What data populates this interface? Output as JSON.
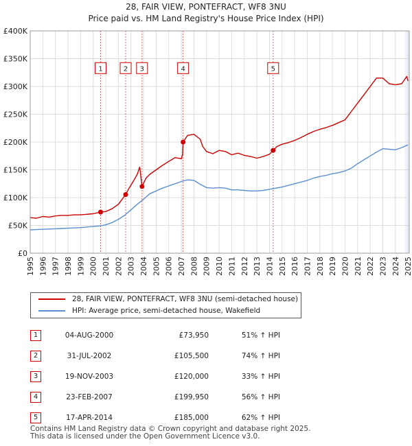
{
  "title_line1": "28, FAIR VIEW, PONTEFRACT, WF8 3NU",
  "title_line2": "Price paid vs. HM Land Registry's House Price Index (HPI)",
  "colors": {
    "property": "#cc0000",
    "hpi": "#5a8fd0",
    "grid": "#dddddd",
    "shade": "#eef3fb",
    "vline": "#e06666",
    "marker_border": "#cc0000"
  },
  "chart_data": {
    "type": "line",
    "title": "28, FAIR VIEW, PONTEFRACT, WF8 3NU",
    "subtitle": "Price paid vs. HM Land Registry's House Price Index (HPI)",
    "xlabel": "",
    "ylabel": "",
    "xlim": [
      1995,
      2025.1
    ],
    "ylim": [
      0,
      400000
    ],
    "y_ticks": [
      {
        "value": 0,
        "label": "£0"
      },
      {
        "value": 50000,
        "label": "£50K"
      },
      {
        "value": 100000,
        "label": "£100K"
      },
      {
        "value": 150000,
        "label": "£150K"
      },
      {
        "value": 200000,
        "label": "£200K"
      },
      {
        "value": 250000,
        "label": "£250K"
      },
      {
        "value": 300000,
        "label": "£300K"
      },
      {
        "value": 350000,
        "label": "£350K"
      },
      {
        "value": 400000,
        "label": "£400K"
      }
    ],
    "x_ticks": [
      "1995",
      "1996",
      "1997",
      "1998",
      "1999",
      "2000",
      "2001",
      "2002",
      "2003",
      "2004",
      "2005",
      "2006",
      "2007",
      "2008",
      "2009",
      "2010",
      "2011",
      "2012",
      "2013",
      "2014",
      "2015",
      "2016",
      "2017",
      "2018",
      "2019",
      "2020",
      "2021",
      "2022",
      "2023",
      "2024",
      "2025"
    ],
    "grid": true,
    "legend_position": "below chart",
    "shaded_region": [
      2024.75,
      2025.1
    ],
    "series": [
      {
        "name": "28, FAIR VIEW, PONTEFRACT, WF8 3NU (semi-detached house)",
        "color": "#cc0000",
        "x": [
          1995.0,
          1995.5,
          1996.0,
          1996.5,
          1997.0,
          1997.5,
          1998.0,
          1998.5,
          1999.0,
          1999.5,
          2000.0,
          2000.59,
          2001.0,
          2001.5,
          2002.0,
          2002.58,
          2002.8,
          2003.2,
          2003.5,
          2003.7,
          2003.88,
          2004.2,
          2004.5,
          2005.0,
          2005.5,
          2006.0,
          2006.5,
          2007.0,
          2007.1,
          2007.14,
          2007.5,
          2008.0,
          2008.5,
          2008.7,
          2009.0,
          2009.5,
          2010.0,
          2010.5,
          2011.0,
          2011.5,
          2012.0,
          2012.5,
          2013.0,
          2013.5,
          2014.0,
          2014.29,
          2014.6,
          2015.0,
          2015.5,
          2016.0,
          2016.5,
          2017.0,
          2017.5,
          2018.0,
          2018.5,
          2019.0,
          2019.5,
          2020.0,
          2020.5,
          2021.0,
          2021.5,
          2022.0,
          2022.5,
          2023.0,
          2023.5,
          2024.0,
          2024.5,
          2024.9,
          2025.0
        ],
        "values": [
          64000,
          63000,
          66000,
          65000,
          67000,
          68000,
          68000,
          69000,
          69000,
          70000,
          71000,
          73950,
          75000,
          80000,
          88000,
          105500,
          115000,
          130000,
          142000,
          155000,
          120000,
          135000,
          142000,
          150000,
          158000,
          165000,
          172000,
          170000,
          178000,
          199950,
          212000,
          214000,
          205000,
          192000,
          183000,
          179000,
          185000,
          183000,
          177000,
          180000,
          176000,
          174000,
          171000,
          174000,
          178000,
          185000,
          192000,
          196000,
          199000,
          203000,
          208000,
          214000,
          219000,
          223000,
          226000,
          230000,
          235000,
          240000,
          255000,
          270000,
          285000,
          300000,
          315000,
          315000,
          305000,
          303000,
          305000,
          318000,
          310000
        ]
      },
      {
        "name": "HPI: Average price, semi-detached house, Wakefield",
        "color": "#5a8fd0",
        "x": [
          1995.0,
          1995.5,
          1996.0,
          1996.5,
          1997.0,
          1997.5,
          1998.0,
          1998.5,
          1999.0,
          1999.5,
          2000.0,
          2000.5,
          2001.0,
          2001.5,
          2002.0,
          2002.5,
          2003.0,
          2003.5,
          2004.0,
          2004.5,
          2005.0,
          2005.5,
          2006.0,
          2006.5,
          2007.0,
          2007.5,
          2008.0,
          2008.5,
          2009.0,
          2009.5,
          2010.0,
          2010.5,
          2011.0,
          2011.5,
          2012.0,
          2012.5,
          2013.0,
          2013.5,
          2014.0,
          2014.5,
          2015.0,
          2015.5,
          2016.0,
          2016.5,
          2017.0,
          2017.5,
          2018.0,
          2018.5,
          2019.0,
          2019.5,
          2020.0,
          2020.5,
          2021.0,
          2021.5,
          2022.0,
          2022.5,
          2023.0,
          2023.5,
          2024.0,
          2024.5,
          2025.0
        ],
        "values": [
          42000,
          42500,
          43000,
          43500,
          44000,
          44500,
          45000,
          45500,
          46000,
          47000,
          48000,
          49000,
          51000,
          55000,
          61000,
          68000,
          78000,
          88000,
          97000,
          107000,
          112000,
          117000,
          121000,
          125000,
          129000,
          132000,
          131000,
          124000,
          118000,
          117000,
          118000,
          117000,
          114000,
          114000,
          113000,
          112000,
          112000,
          113000,
          115000,
          117000,
          119000,
          122000,
          125000,
          128000,
          131000,
          135000,
          138000,
          140000,
          143000,
          145000,
          148000,
          153000,
          161000,
          168000,
          175000,
          182000,
          188000,
          187000,
          186000,
          190000,
          195000
        ]
      }
    ],
    "sale_markers": [
      {
        "label": "1",
        "x": 2000.59,
        "value": 73950
      },
      {
        "label": "2",
        "x": 2002.58,
        "value": 105500
      },
      {
        "label": "3",
        "x": 2003.88,
        "value": 120000
      },
      {
        "label": "4",
        "x": 2007.14,
        "value": 199950
      },
      {
        "label": "5",
        "x": 2014.29,
        "value": 185000
      }
    ],
    "marker_label_value": 333000
  },
  "legend": {
    "property_label": "28, FAIR VIEW, PONTEFRACT, WF8 3NU (semi-detached house)",
    "hpi_label": "HPI: Average price, semi-detached house, Wakefield"
  },
  "sales": [
    {
      "num": "1",
      "date": "04-AUG-2000",
      "price": "£73,950",
      "hpi": "51% ↑ HPI"
    },
    {
      "num": "2",
      "date": "31-JUL-2002",
      "price": "£105,500",
      "hpi": "74% ↑ HPI"
    },
    {
      "num": "3",
      "date": "19-NOV-2003",
      "price": "£120,000",
      "hpi": "33% ↑ HPI"
    },
    {
      "num": "4",
      "date": "23-FEB-2007",
      "price": "£199,950",
      "hpi": "56% ↑ HPI"
    },
    {
      "num": "5",
      "date": "17-APR-2014",
      "price": "£185,000",
      "hpi": "62% ↑ HPI"
    }
  ],
  "footer": {
    "line1": "Contains HM Land Registry data © Crown copyright and database right 2025.",
    "line2": "This data is licensed under the Open Government Licence v3.0."
  }
}
